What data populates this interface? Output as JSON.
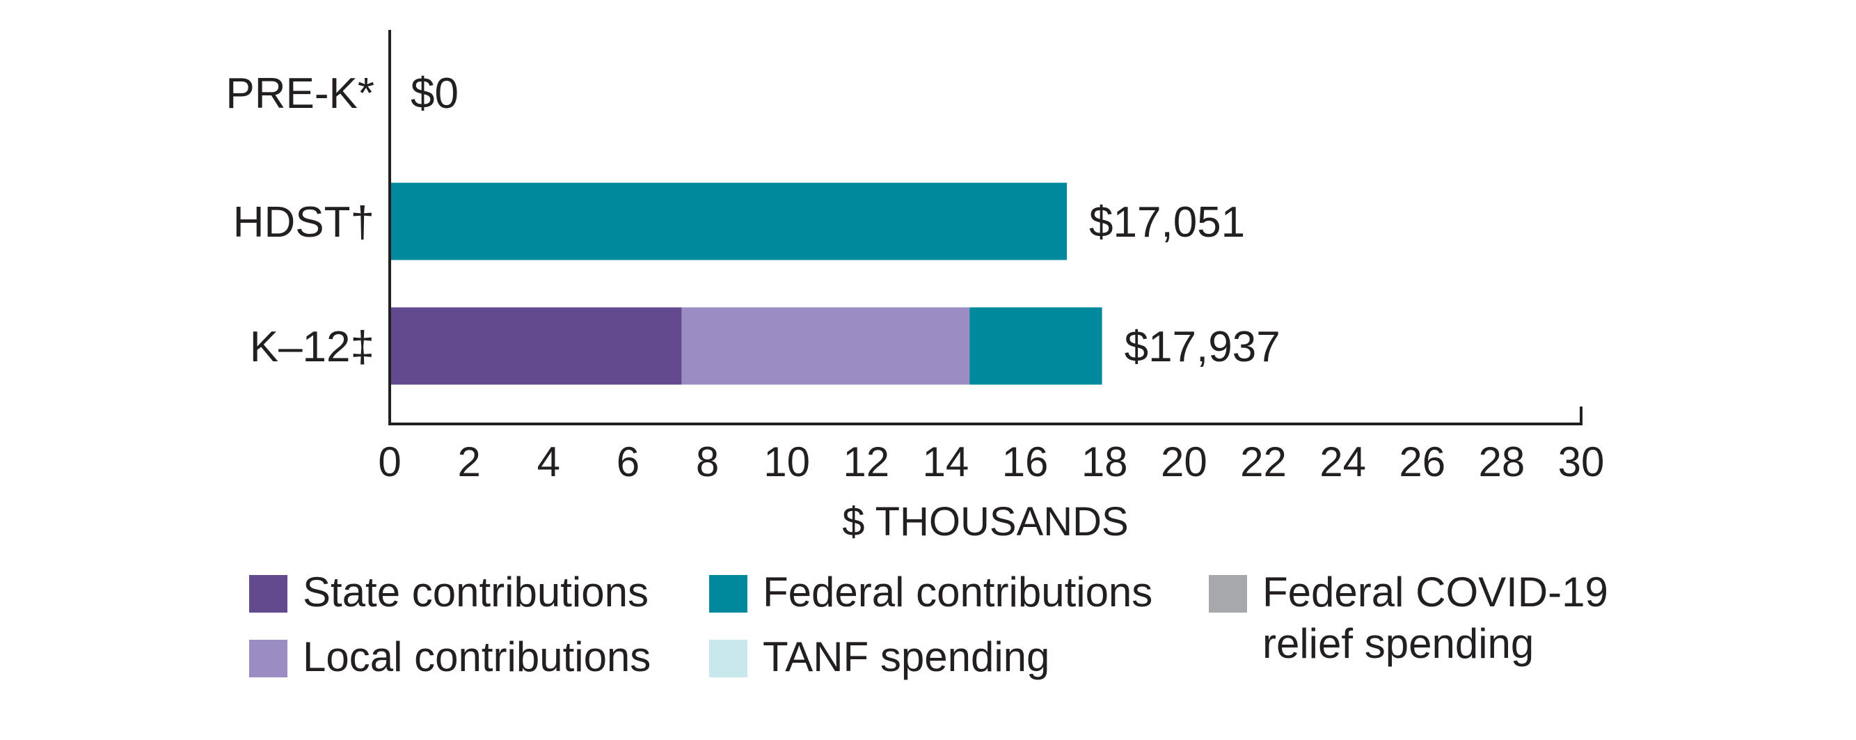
{
  "chart_data": {
    "type": "bar",
    "orientation": "horizontal",
    "stacked": true,
    "title": "",
    "xlabel": "$ THOUSANDS",
    "ylabel": "",
    "xlim": [
      0,
      30
    ],
    "x_ticks": [
      0,
      2,
      4,
      6,
      8,
      10,
      12,
      14,
      16,
      18,
      20,
      22,
      24,
      26,
      28,
      30
    ],
    "grid": false,
    "categories": [
      "PRE-K*",
      "HDST†",
      "K–12‡"
    ],
    "series": [
      {
        "name": "State contributions",
        "color": "#634a8f",
        "values": [
          0,
          0,
          7.35
        ]
      },
      {
        "name": "Local contributions",
        "color": "#9b8dc3",
        "values": [
          0,
          0,
          7.25
        ]
      },
      {
        "name": "Federal contributions",
        "color": "#00899c",
        "values": [
          0,
          17.051,
          3.337
        ]
      },
      {
        "name": "TANF spending",
        "color": "#c9e8ee",
        "values": [
          0,
          0,
          0
        ]
      },
      {
        "name": "Federal COVID-19 relief spending",
        "color": "#a7a8ab",
        "values": [
          0,
          0,
          0
        ]
      }
    ],
    "totals": [
      0,
      17.051,
      17.937
    ],
    "value_labels": [
      "$0",
      "$17,051",
      "$17,937"
    ],
    "legend": {
      "placement": "bottom",
      "columns": [
        [
          {
            "label": "State contributions",
            "color": "#634a8f"
          },
          {
            "label": "Local contributions",
            "color": "#9b8dc3"
          }
        ],
        [
          {
            "label": "Federal contributions",
            "color": "#00899c"
          },
          {
            "label": "TANF spending",
            "color": "#c9e8ee"
          }
        ],
        [
          {
            "label_lines": [
              "Federal COVID-19",
              "relief spending"
            ],
            "color": "#a7a8ab"
          }
        ]
      ]
    }
  }
}
